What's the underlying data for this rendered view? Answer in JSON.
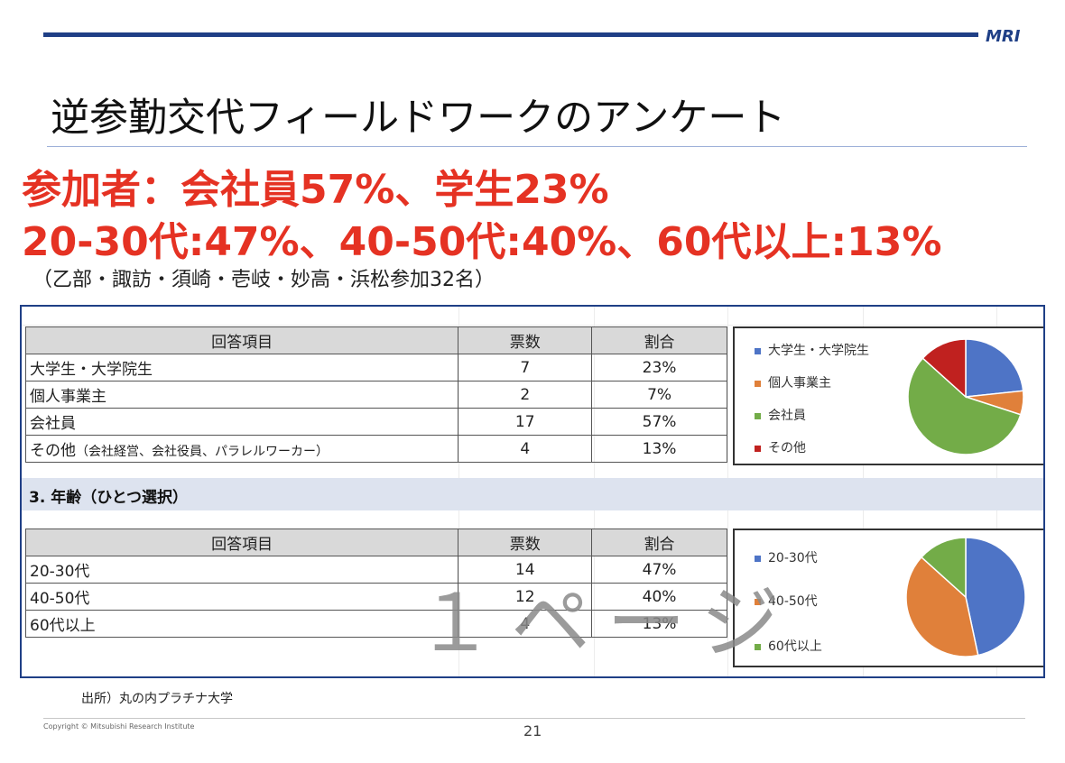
{
  "header": {
    "logo": "MRI"
  },
  "title": "逆参勤交代フィールドワークのアンケート",
  "headline1": "参加者：会社員57%、学生23%",
  "headline2": "20-30代:47%、40-50代:40%、60代以上:13%",
  "participants": "（乙部・諏訪・須崎・壱岐・妙高・浜松参加32名）",
  "table1": {
    "headers": [
      "回答項目",
      "票数",
      "割合"
    ],
    "rows": [
      {
        "label": "大学生・大学院生",
        "note": "",
        "count": "7",
        "pct": "23%"
      },
      {
        "label": "個人事業主",
        "note": "",
        "count": "2",
        "pct": "7%"
      },
      {
        "label": "会社員",
        "note": "",
        "count": "17",
        "pct": "57%"
      },
      {
        "label": "その他",
        "note": "（会社経営、会社役員、パラレルワーカー）",
        "count": "4",
        "pct": "13%"
      }
    ]
  },
  "section2": "3. 年齢（ひとつ選択）",
  "table2": {
    "headers": [
      "回答項目",
      "票数",
      "割合"
    ],
    "rows": [
      {
        "label": "20-30代",
        "count": "14",
        "pct": "47%"
      },
      {
        "label": "40-50代",
        "count": "12",
        "pct": "40%"
      },
      {
        "label": "60代以上",
        "count": "4",
        "pct": "13%"
      }
    ]
  },
  "watermark": "１ページ",
  "source": "出所）丸の内プラチナ大学",
  "footer": {
    "copyright": "Copyright © Mitsubishi Research Institute",
    "page": "21"
  },
  "chart_data": [
    {
      "type": "pie",
      "series": [
        {
          "name": "大学生・大学院生",
          "value": 7,
          "color": "#4e74c6"
        },
        {
          "name": "個人事業主",
          "value": 2,
          "color": "#e0803a"
        },
        {
          "name": "会社員",
          "value": 17,
          "color": "#73ac48"
        },
        {
          "name": "その他",
          "value": 4,
          "color": "#c0211f"
        }
      ],
      "legend": "left"
    },
    {
      "type": "pie",
      "series": [
        {
          "name": "20-30代",
          "value": 14,
          "color": "#4e74c6"
        },
        {
          "name": "40-50代",
          "value": 12,
          "color": "#e0803a"
        },
        {
          "name": "60代以上",
          "value": 4,
          "color": "#73ac48"
        }
      ],
      "legend": "left"
    }
  ]
}
